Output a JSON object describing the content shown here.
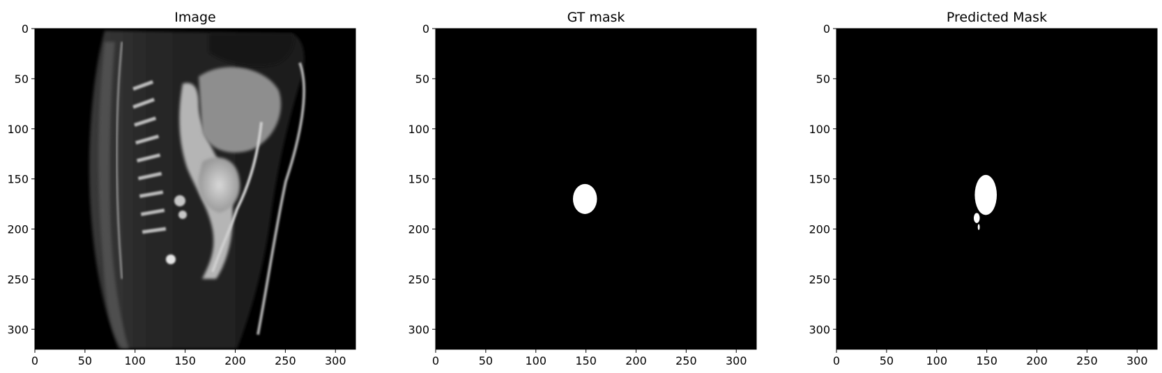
{
  "chart_data": [
    {
      "type": "image",
      "title": "Image",
      "content": "grayscale sagittal MRI slice",
      "xlim": [
        0,
        320
      ],
      "ylim": [
        320,
        0
      ],
      "xticks": [
        0,
        50,
        100,
        150,
        200,
        250,
        300
      ],
      "yticks": [
        0,
        50,
        100,
        150,
        200,
        250,
        300
      ],
      "colormap": "gray"
    },
    {
      "type": "image",
      "title": "GT mask",
      "content": "binary mask",
      "xlim": [
        0,
        320
      ],
      "ylim": [
        320,
        0
      ],
      "xticks": [
        0,
        50,
        100,
        150,
        200,
        250,
        300
      ],
      "yticks": [
        0,
        50,
        100,
        150,
        200,
        250,
        300
      ],
      "colormap": "gray",
      "regions": [
        {
          "shape": "ellipse",
          "cx": 149,
          "cy": 170,
          "rx": 12,
          "ry": 15
        }
      ]
    },
    {
      "type": "image",
      "title": "Predicted Mask",
      "content": "binary mask",
      "xlim": [
        0,
        320
      ],
      "ylim": [
        320,
        0
      ],
      "xticks": [
        0,
        50,
        100,
        150,
        200,
        250,
        300
      ],
      "yticks": [
        0,
        50,
        100,
        150,
        200,
        250,
        300
      ],
      "colormap": "gray",
      "regions": [
        {
          "shape": "ellipse",
          "cx": 149,
          "cy": 166,
          "rx": 11,
          "ry": 20
        },
        {
          "shape": "ellipse",
          "cx": 140,
          "cy": 189,
          "rx": 3,
          "ry": 5
        },
        {
          "shape": "ellipse",
          "cx": 142,
          "cy": 198,
          "rx": 1,
          "ry": 3
        }
      ]
    }
  ]
}
